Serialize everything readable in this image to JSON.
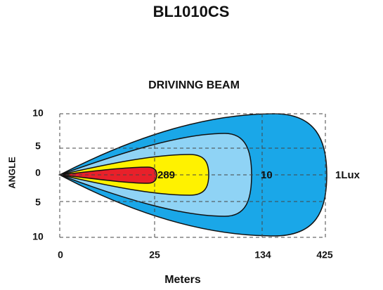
{
  "title": "BL1010CS",
  "subtitle": "DRIVINNG  BEAM",
  "y_axis": {
    "label": "ANGLE",
    "ticks": [
      "10",
      "5",
      "0",
      "5",
      "10"
    ]
  },
  "x_axis": {
    "label": "Meters",
    "ticks": [
      "0",
      "25",
      "134",
      "425"
    ]
  },
  "contours": [
    "289",
    "10",
    "1Lux"
  ]
}
